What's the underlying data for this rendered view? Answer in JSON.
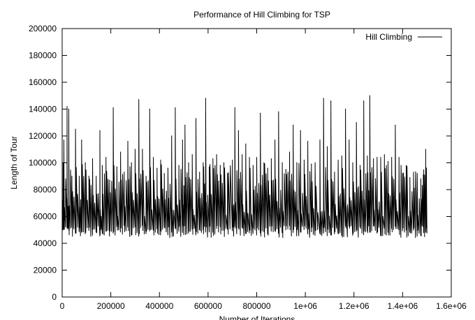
{
  "chart_data": {
    "type": "line",
    "title": "Performance of Hill Climbing for TSP",
    "xlabel": "Number of Iterations",
    "ylabel": "Length of Tour",
    "xlim": [
      0,
      1600000
    ],
    "ylim": [
      0,
      200000
    ],
    "x_ticks": [
      0,
      200000,
      400000,
      600000,
      800000,
      1000000,
      1200000,
      1400000,
      1600000
    ],
    "x_tick_labels": [
      "0",
      "200000",
      "400000",
      "600000",
      "800000",
      "1e+06",
      "1.2e+06",
      "1.4e+06",
      "1.6e+06"
    ],
    "y_ticks": [
      0,
      20000,
      40000,
      60000,
      80000,
      100000,
      120000,
      140000,
      160000,
      180000,
      200000
    ],
    "y_tick_labels": [
      "0",
      "20000",
      "40000",
      "60000",
      "80000",
      "100000",
      "120000",
      "140000",
      "160000",
      "180000",
      "200000"
    ],
    "grid": false,
    "legend_position": "top-right",
    "series": [
      {
        "name": "Hill Climbing",
        "color": "#000000",
        "x_range": [
          0,
          1500000
        ],
        "restart_peaks": [
          [
            0,
            103000
          ],
          [
            7000,
            117000
          ],
          [
            20000,
            142000
          ],
          [
            27000,
            140000
          ],
          [
            40000,
            90000
          ],
          [
            55000,
            125000
          ],
          [
            70000,
            90000
          ],
          [
            80000,
            117000
          ],
          [
            95000,
            100000
          ],
          [
            110000,
            90000
          ],
          [
            125000,
            103000
          ],
          [
            140000,
            90000
          ],
          [
            155000,
            124000
          ],
          [
            165000,
            98000
          ],
          [
            180000,
            104000
          ],
          [
            195000,
            87000
          ],
          [
            210000,
            141000
          ],
          [
            225000,
            97000
          ],
          [
            240000,
            108000
          ],
          [
            255000,
            93000
          ],
          [
            270000,
            116000
          ],
          [
            285000,
            100000
          ],
          [
            300000,
            110000
          ],
          [
            315000,
            147000
          ],
          [
            330000,
            110000
          ],
          [
            345000,
            90000
          ],
          [
            360000,
            140000
          ],
          [
            375000,
            104000
          ],
          [
            390000,
            96000
          ],
          [
            405000,
            102000
          ],
          [
            420000,
            92000
          ],
          [
            435000,
            96000
          ],
          [
            450000,
            120000
          ],
          [
            465000,
            141000
          ],
          [
            480000,
            98000
          ],
          [
            495000,
            117000
          ],
          [
            505000,
            128000
          ],
          [
            520000,
            100000
          ],
          [
            535000,
            106000
          ],
          [
            550000,
            133000
          ],
          [
            565000,
            93000
          ],
          [
            580000,
            100000
          ],
          [
            590000,
            148000
          ],
          [
            605000,
            97000
          ],
          [
            620000,
            103000
          ],
          [
            635000,
            106000
          ],
          [
            650000,
            98000
          ],
          [
            665000,
            100000
          ],
          [
            680000,
            92000
          ],
          [
            700000,
            102000
          ],
          [
            710000,
            141000
          ],
          [
            725000,
            124000
          ],
          [
            740000,
            106000
          ],
          [
            755000,
            114000
          ],
          [
            770000,
            104000
          ],
          [
            785000,
            98000
          ],
          [
            800000,
            104000
          ],
          [
            815000,
            137000
          ],
          [
            830000,
            100000
          ],
          [
            845000,
            96000
          ],
          [
            860000,
            103000
          ],
          [
            875000,
            117000
          ],
          [
            890000,
            138000
          ],
          [
            905000,
            100000
          ],
          [
            920000,
            95000
          ],
          [
            935000,
            108000
          ],
          [
            950000,
            128000
          ],
          [
            965000,
            100000
          ],
          [
            980000,
            124000
          ],
          [
            995000,
            102000
          ],
          [
            1010000,
            116000
          ],
          [
            1025000,
            99000
          ],
          [
            1040000,
            100000
          ],
          [
            1060000,
            117000
          ],
          [
            1075000,
            148000
          ],
          [
            1090000,
            112000
          ],
          [
            1105000,
            146000
          ],
          [
            1120000,
            93000
          ],
          [
            1135000,
            102000
          ],
          [
            1150000,
            105000
          ],
          [
            1165000,
            140000
          ],
          [
            1180000,
            117000
          ],
          [
            1195000,
            100000
          ],
          [
            1210000,
            130000
          ],
          [
            1225000,
            98000
          ],
          [
            1240000,
            146000
          ],
          [
            1255000,
            105000
          ],
          [
            1265000,
            150000
          ],
          [
            1280000,
            103000
          ],
          [
            1295000,
            104000
          ],
          [
            1310000,
            104000
          ],
          [
            1325000,
            106000
          ],
          [
            1340000,
            101000
          ],
          [
            1355000,
            104000
          ],
          [
            1370000,
            128000
          ],
          [
            1385000,
            104000
          ],
          [
            1400000,
            92000
          ],
          [
            1415000,
            98000
          ],
          [
            1430000,
            89000
          ],
          [
            1445000,
            93000
          ],
          [
            1460000,
            92000
          ],
          [
            1475000,
            88000
          ],
          [
            1485000,
            91000
          ],
          [
            1495000,
            110000
          ]
        ]
      }
    ]
  }
}
